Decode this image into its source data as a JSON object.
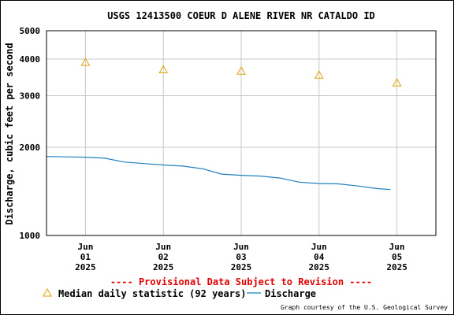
{
  "chart_data": {
    "type": "line",
    "title": "USGS 12413500 COEUR D ALENE RIVER NR CATALDO ID",
    "ylabel": "Discharge, cubic feet per second",
    "xlabel": "",
    "yscale": "log",
    "ylim": [
      1000,
      5000
    ],
    "y_ticks": [
      1000,
      2000,
      3000,
      4000,
      5000
    ],
    "xlim": [
      "2025-05-31T12:00",
      "2025-06-05T12:00"
    ],
    "x_ticks": [
      {
        "date": "2025-06-01",
        "lines": [
          "Jun",
          "01",
          "2025"
        ]
      },
      {
        "date": "2025-06-02",
        "lines": [
          "Jun",
          "02",
          "2025"
        ]
      },
      {
        "date": "2025-06-03",
        "lines": [
          "Jun",
          "03",
          "2025"
        ]
      },
      {
        "date": "2025-06-04",
        "lines": [
          "Jun",
          "04",
          "2025"
        ]
      },
      {
        "date": "2025-06-05",
        "lines": [
          "Jun",
          "05",
          "2025"
        ]
      }
    ],
    "grid": true,
    "series": [
      {
        "name": "Discharge",
        "color": "#1f7fbf",
        "style": "line",
        "points": [
          [
            "2025-05-31T12:00",
            1860
          ],
          [
            "2025-05-31T18:00",
            1855
          ],
          [
            "2025-06-01T00:00",
            1850
          ],
          [
            "2025-06-01T06:00",
            1835
          ],
          [
            "2025-06-01T12:00",
            1780
          ],
          [
            "2025-06-01T18:00",
            1760
          ],
          [
            "2025-06-02T00:00",
            1740
          ],
          [
            "2025-06-02T06:00",
            1725
          ],
          [
            "2025-06-02T12:00",
            1690
          ],
          [
            "2025-06-02T18:00",
            1620
          ],
          [
            "2025-06-03T00:00",
            1605
          ],
          [
            "2025-06-03T06:00",
            1595
          ],
          [
            "2025-06-03T12:00",
            1570
          ],
          [
            "2025-06-03T18:00",
            1520
          ],
          [
            "2025-06-04T00:00",
            1505
          ],
          [
            "2025-06-04T06:00",
            1500
          ],
          [
            "2025-06-04T12:00",
            1475
          ],
          [
            "2025-06-04T18:00",
            1445
          ],
          [
            "2025-06-04T22:00",
            1435
          ]
        ]
      },
      {
        "name": "Median daily statistic (92 years)",
        "color": "#e6a000",
        "style": "triangle",
        "points": [
          [
            "2025-06-01T00:00",
            3900
          ],
          [
            "2025-06-02T00:00",
            3680
          ],
          [
            "2025-06-03T00:00",
            3640
          ],
          [
            "2025-06-04T00:00",
            3530
          ],
          [
            "2025-06-05T00:00",
            3320
          ]
        ]
      }
    ],
    "annotation": "---- Provisional Data Subject to Revision ----",
    "legend": {
      "placement": "bottom-left",
      "items": [
        {
          "label": "Median daily statistic (92 years)",
          "marker": "triangle",
          "color": "#e6a000"
        },
        {
          "label": "Discharge",
          "marker": "line",
          "color": "#1f7fbf"
        }
      ]
    },
    "credit": "Graph courtesy of the U.S. Geological Survey"
  }
}
